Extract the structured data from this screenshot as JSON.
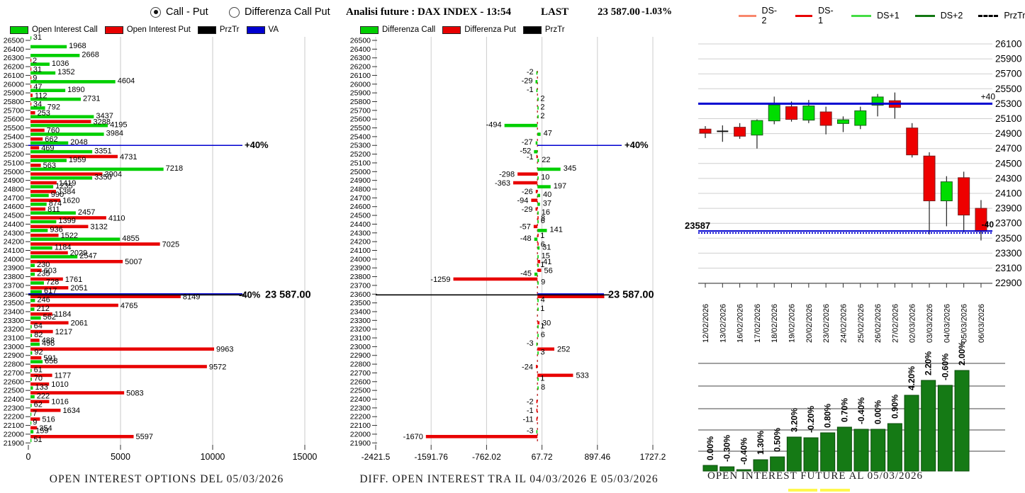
{
  "header": {
    "radio_call_put": "Call - Put",
    "radio_diff": "Differenza Call Put",
    "title": "Analisi future : DAX INDEX - 13:54",
    "last_label": "LAST",
    "last_value": "23 587.00",
    "last_change": "-1.03%"
  },
  "colors": {
    "call_green": "#00CF00",
    "put_red": "#E80000",
    "va_blue": "#0000D0",
    "prztr_black": "#000000",
    "oi_future_green": "#157A15",
    "ds_minus2": "#F8876C",
    "ds_minus1": "#E80000",
    "ds_plus1": "#44DD44",
    "ds_plus2": "#117711",
    "grid_gray": "#C0C0C0",
    "zero_dash_red": "#C03030",
    "highlight_yellow": "#FFF84D"
  },
  "left": {
    "legend": [
      {
        "label": "Open Interest Call",
        "color": "#00CF00"
      },
      {
        "label": "Open Interest Put",
        "color": "#E80000"
      },
      {
        "label": "PrzTr",
        "color": "#000000"
      },
      {
        "label": "VA",
        "color": "#0000D0"
      }
    ],
    "title": "OPEN INTEREST OPTIONS DEL 05/03/2026",
    "plus_label": "+40%",
    "minus_label": "-40%",
    "price_label": "23 587.00"
  },
  "middle": {
    "legend": [
      {
        "label": "Differenza Call",
        "color": "#00CF00"
      },
      {
        "label": "Differenza Put",
        "color": "#E80000"
      },
      {
        "label": "PrzTr",
        "color": "#000000"
      }
    ],
    "title": "DIFF. OPEN INTEREST TRA IL 04/03/2026 E 05/03/2026",
    "plus_label": "+40%",
    "price_label": "23 587.00"
  },
  "right": {
    "legend": [
      {
        "label": "DS-2",
        "color": "#F8876C",
        "dash": false
      },
      {
        "label": "DS-1",
        "color": "#E80000",
        "dash": false
      },
      {
        "label": "DS+1",
        "color": "#44DD44",
        "dash": false
      },
      {
        "label": "DS+2",
        "color": "#117711",
        "dash": false
      },
      {
        "label": "PrzTr",
        "color": "#000000",
        "dash": true
      }
    ],
    "title": "OPEN INTEREST FUTURE AL 05/03/2026",
    "plus_label": "+40",
    "price_label": "23587",
    "minus_label": "-40"
  },
  "chart_data": [
    {
      "id": "oi_options",
      "type": "bar",
      "orientation": "horizontal",
      "title": "OPEN INTEREST OPTIONS DEL 05/03/2026",
      "x_ticks": [
        0,
        5000,
        10000,
        15000
      ],
      "xlim": [
        0,
        15500
      ],
      "strikes": [
        26500,
        26400,
        26300,
        26200,
        26100,
        26000,
        25900,
        25800,
        25700,
        25600,
        25500,
        25400,
        25300,
        25200,
        25100,
        25000,
        24900,
        24800,
        24700,
        24600,
        24500,
        24400,
        24300,
        24200,
        24100,
        24000,
        23900,
        23800,
        23700,
        23600,
        23500,
        23400,
        23300,
        23200,
        23100,
        23000,
        22900,
        22800,
        22700,
        22600,
        22500,
        22400,
        22300,
        22200,
        22100,
        22000,
        21900
      ],
      "series": [
        {
          "name": "Open Interest Call",
          "color": "#00CF00",
          "values": [
            31,
            1968,
            2668,
            1036,
            1352,
            4604,
            1890,
            2731,
            792,
            3437,
            4195,
            3984,
            2048,
            3351,
            1959,
            7218,
            3350,
            1235,
            990,
            874,
            2457,
            1399,
            936,
            4855,
            1184,
            2547,
            230,
            235,
            728,
            617,
            246,
            212,
            562,
            64,
            82,
            498,
            92,
            658,
            61,
            70,
            133,
            222,
            62,
            7,
            9,
            159,
            51
          ]
        },
        {
          "name": "Open Interest Put",
          "color": "#E80000",
          "values": [
            0,
            0,
            2,
            31,
            9,
            47,
            112,
            34,
            253,
            3288,
            760,
            662,
            469,
            4731,
            563,
            3904,
            1419,
            1384,
            1620,
            811,
            4110,
            3132,
            1522,
            7025,
            2029,
            5007,
            603,
            1761,
            2051,
            8149,
            4765,
            1184,
            2061,
            1217,
            488,
            9963,
            591,
            9572,
            1177,
            1010,
            5083,
            1016,
            1634,
            516,
            354,
            5597,
            0
          ]
        }
      ],
      "va_plus_strike": 25300,
      "va_minus_strike": 23600,
      "prztr_price": 23587
    },
    {
      "id": "oi_diff",
      "type": "bar",
      "orientation": "horizontal",
      "title": "DIFF. OPEN INTEREST TRA IL 04/03/2026 E 05/03/2026",
      "x_ticks": [
        -2421.5,
        -1591.76,
        -762.02,
        67.72,
        897.46,
        1727.2
      ],
      "strikes": [
        26500,
        26400,
        26300,
        26200,
        26100,
        26000,
        25900,
        25800,
        25700,
        25600,
        25500,
        25400,
        25300,
        25200,
        25100,
        25000,
        24900,
        24800,
        24700,
        24600,
        24500,
        24400,
        24300,
        24200,
        24100,
        24000,
        23900,
        23800,
        23700,
        23600,
        23500,
        23400,
        23300,
        23200,
        23100,
        23000,
        22900,
        22800,
        22700,
        22600,
        22500,
        22400,
        22300,
        22200,
        22100,
        22000,
        21900
      ],
      "series": [
        {
          "name": "Differenza Call",
          "color": "#00CF00",
          "values": [
            0,
            0,
            0,
            0,
            -2,
            -29,
            -1,
            2,
            2,
            2,
            -494,
            47,
            -27,
            -52,
            22,
            345,
            10,
            197,
            40,
            37,
            16,
            6,
            141,
            -48,
            31,
            15,
            1,
            -45,
            9,
            0,
            4,
            1,
            0,
            1,
            6,
            -3,
            3,
            0,
            0,
            1,
            8,
            0,
            0,
            0,
            0,
            -3,
            0
          ]
        },
        {
          "name": "Differenza Put",
          "color": "#E80000",
          "values": [
            0,
            0,
            0,
            0,
            0,
            0,
            0,
            0,
            0,
            0,
            0,
            0,
            0,
            -1,
            0,
            -298,
            -363,
            -26,
            -94,
            -29,
            8,
            -57,
            1,
            6,
            0,
            41,
            56,
            -1259,
            0,
            1000,
            0,
            0,
            30,
            0,
            0,
            252,
            0,
            -24,
            533,
            0,
            0,
            -2,
            -1,
            -11,
            0,
            -1670,
            0
          ]
        }
      ],
      "hide_value_label_strike": 23600,
      "va_plus_strike": 25300,
      "prztr_strike": 23600
    },
    {
      "id": "future_candles",
      "type": "candlestick",
      "dates": [
        "12/02/2026",
        "13/02/2026",
        "16/02/2026",
        "17/02/2026",
        "18/02/2026",
        "19/02/2026",
        "20/02/2026",
        "23/02/2026",
        "24/02/2026",
        "25/02/2026",
        "26/02/2026",
        "27/02/2026",
        "02/03/2026",
        "03/03/2026",
        "04/03/2026",
        "05/03/2026",
        "06/03/2026"
      ],
      "ohlc": [
        [
          24960,
          25000,
          24840,
          24905
        ],
        [
          24930,
          25010,
          24790,
          24930
        ],
        [
          24985,
          25040,
          24830,
          24865
        ],
        [
          24880,
          25090,
          24700,
          25075
        ],
        [
          25070,
          25395,
          25025,
          25285
        ],
        [
          25260,
          25330,
          25060,
          25090
        ],
        [
          25080,
          25350,
          25040,
          25270
        ],
        [
          25190,
          25260,
          24890,
          25010
        ],
        [
          25035,
          25130,
          24920,
          25085
        ],
        [
          25010,
          25260,
          24960,
          25205
        ],
        [
          25280,
          25430,
          25130,
          25390
        ],
        [
          25340,
          25450,
          25100,
          25250
        ],
        [
          24975,
          25040,
          24580,
          24615
        ],
        [
          24600,
          24650,
          23550,
          24000
        ],
        [
          24000,
          24330,
          23660,
          24255
        ],
        [
          24310,
          24390,
          23580,
          23810
        ],
        [
          23900,
          24010,
          23470,
          23590
        ]
      ],
      "doji_index": 1,
      "y_ticks": [
        26100,
        25900,
        25700,
        25500,
        25300,
        25100,
        24900,
        24700,
        24500,
        24300,
        24100,
        23900,
        23700,
        23500,
        23300,
        23100,
        22900
      ],
      "hline_solid": 25300,
      "hline_dotted": 23587
    },
    {
      "id": "oi_future",
      "type": "bar",
      "title": "OPEN INTEREST FUTURE AL 05/03/2026",
      "labels": [
        "0.00%",
        "-0.30%",
        "-0.40%",
        "1.30%",
        "0.50%",
        "3.20%",
        "-0.20%",
        "0.80%",
        "0.70%",
        "-0.40%",
        "0.00%",
        "0.90%",
        "4.20%",
        "2.20%",
        "-0.60%",
        "2.00%"
      ],
      "heights": [
        8,
        6,
        2,
        16,
        20,
        48,
        47,
        54,
        62,
        59,
        59,
        67,
        107,
        128,
        121,
        142
      ],
      "gridline_offsets": [
        28,
        58,
        88,
        120,
        152
      ]
    }
  ]
}
